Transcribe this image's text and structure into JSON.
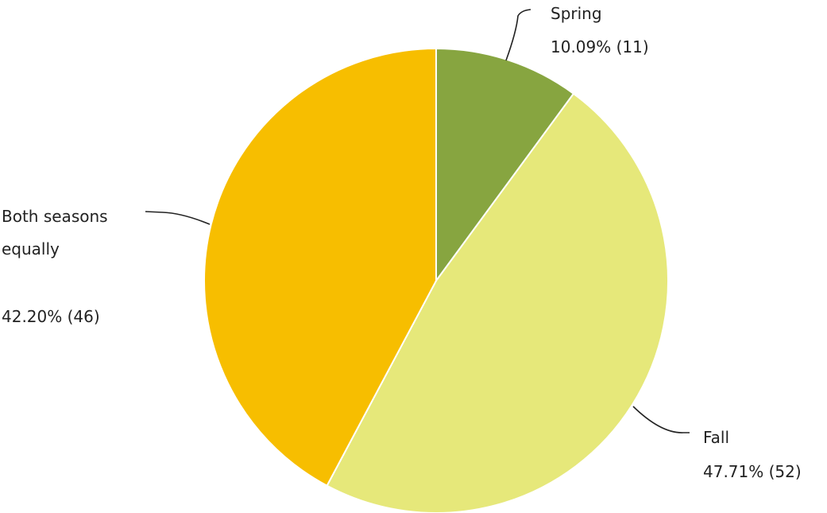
{
  "chart_data": {
    "type": "pie",
    "slices": [
      {
        "name": "Spring",
        "percent_label": "10.09% (11)",
        "value": 11,
        "percent": 10.09,
        "color": "#87a540"
      },
      {
        "name": "Fall",
        "percent_label": "47.71% (52)",
        "value": 52,
        "percent": 47.71,
        "color": "#e6e87a"
      },
      {
        "name": "Both seasons equally",
        "name_lines": [
          "Both seasons",
          "equally"
        ],
        "percent_label": "42.20% (46)",
        "value": 46,
        "percent": 42.2,
        "color": "#f7be00"
      }
    ],
    "start_angle": "12 o'clock",
    "direction": "clockwise",
    "legend": "none"
  }
}
